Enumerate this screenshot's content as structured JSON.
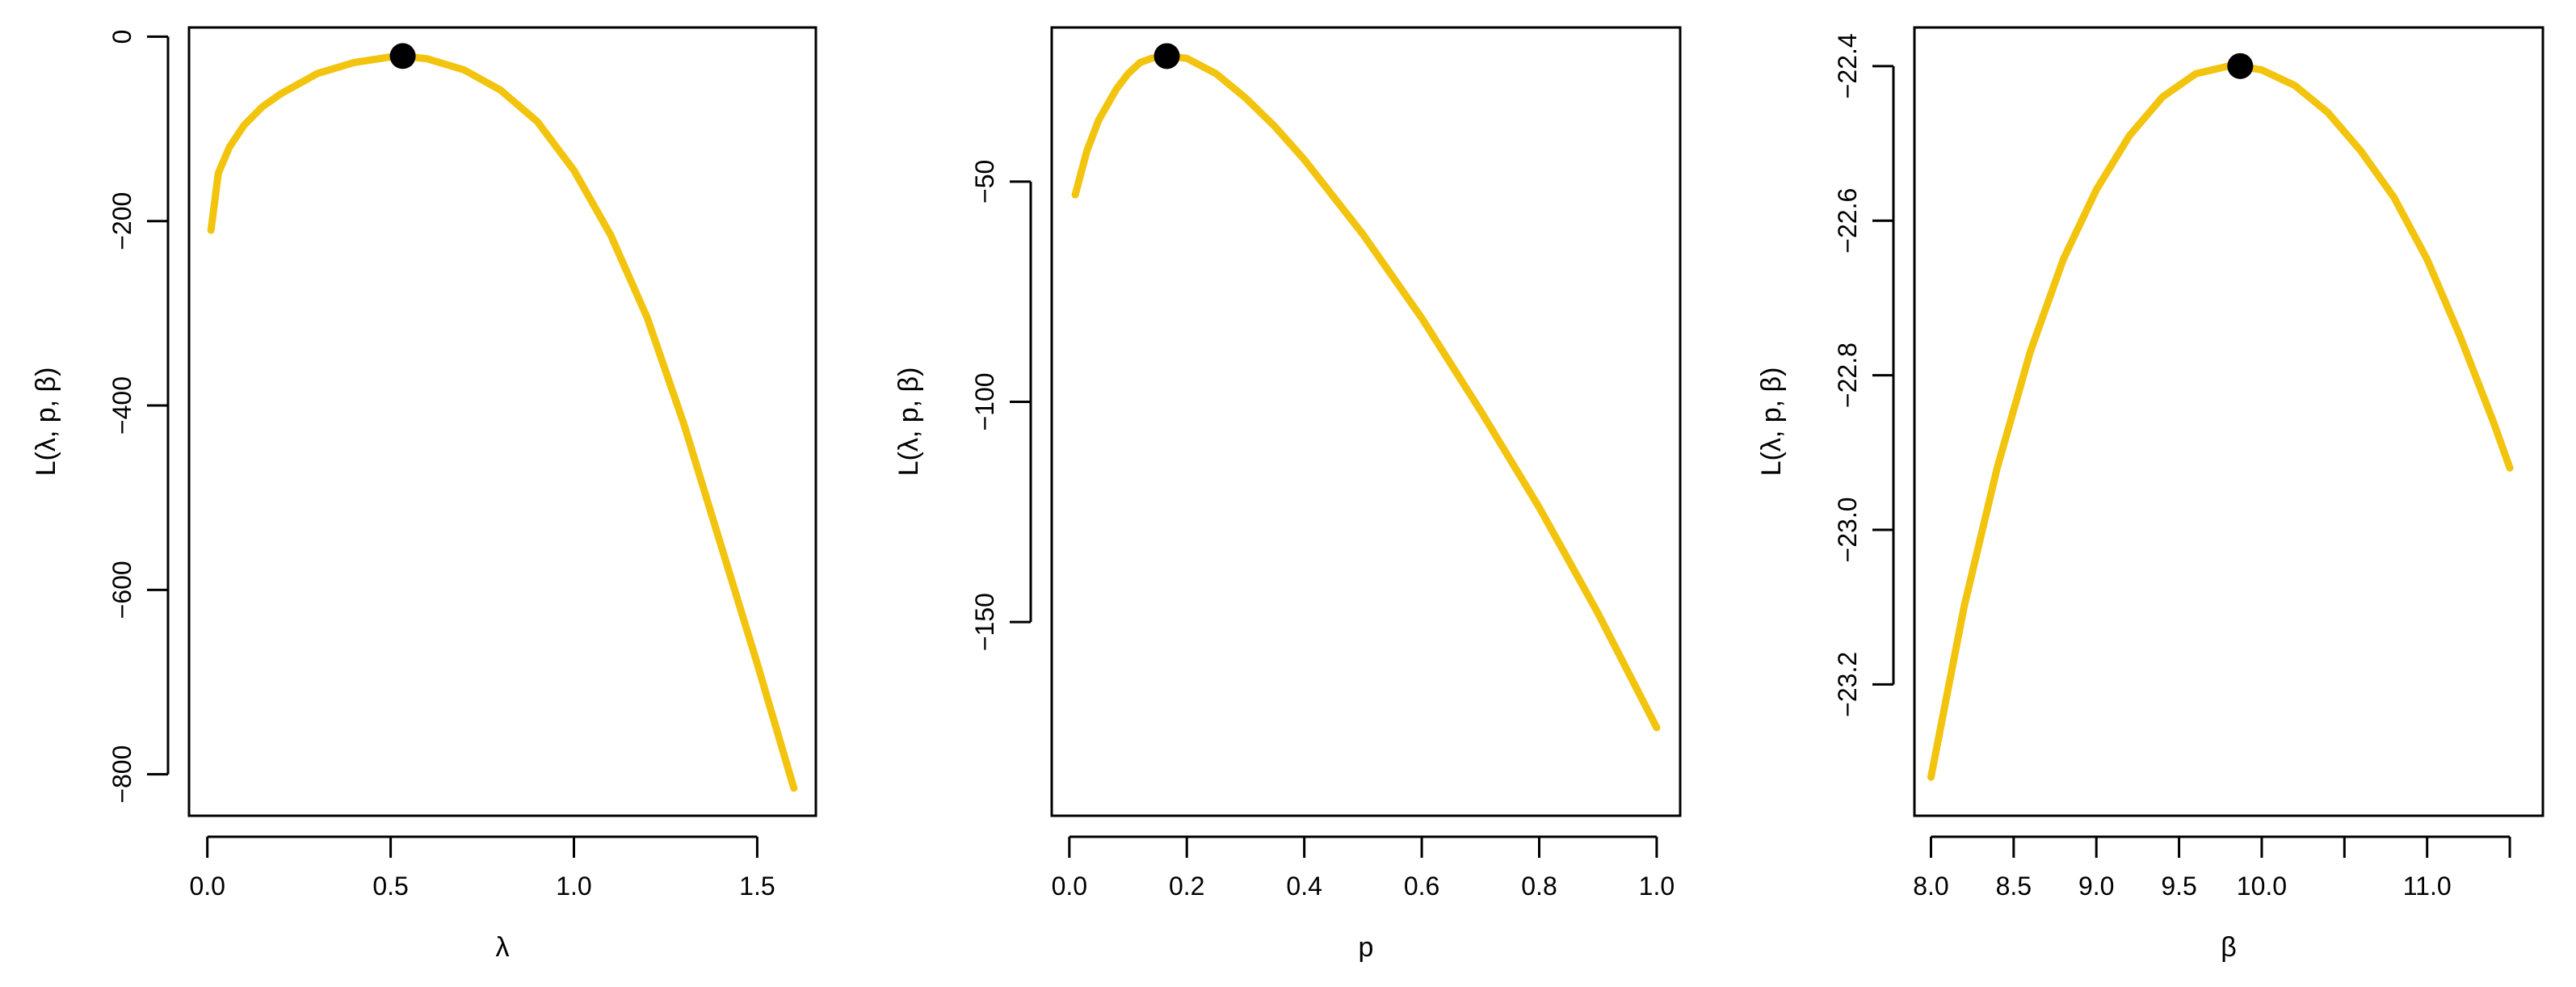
{
  "colors": {
    "curve": "#F2C40E",
    "marker": "#000000",
    "axis": "#000000"
  },
  "chart_data": [
    {
      "type": "line",
      "xlabel": "λ",
      "ylabel": "L(λ, p, β)",
      "xlim": [
        -0.05,
        1.66
      ],
      "ylim": [
        -845,
        10
      ],
      "xticks": [
        0.0,
        0.5,
        1.0,
        1.5
      ],
      "xtick_labels": [
        "0.0",
        "0.5",
        "1.0",
        "1.5"
      ],
      "yticks": [
        0,
        -200,
        -400,
        -600,
        -800
      ],
      "ytick_labels": [
        "0",
        "−200",
        "−400",
        "−600",
        "−800"
      ],
      "series": [
        {
          "x": [
            0.01,
            0.03,
            0.06,
            0.1,
            0.15,
            0.2,
            0.3,
            0.4,
            0.5,
            0.533,
            0.6,
            0.7,
            0.8,
            0.9,
            1.0,
            1.1,
            1.2,
            1.3,
            1.4,
            1.5,
            1.6
          ],
          "y": [
            -210,
            -148,
            -120,
            -96,
            -76,
            -62,
            -40,
            -28,
            -22,
            -21,
            -24,
            -36,
            -58,
            -92,
            -145,
            -215,
            -305,
            -420,
            -550,
            -680,
            -815
          ]
        }
      ],
      "marker": {
        "x": 0.533,
        "y": -21
      }
    },
    {
      "type": "line",
      "xlabel": "p",
      "ylabel": "L(λ, p, β)",
      "xlim": [
        -0.03,
        1.04
      ],
      "ylim": [
        -194,
        -15
      ],
      "xticks": [
        0.0,
        0.2,
        0.4,
        0.6,
        0.8,
        1.0
      ],
      "xtick_labels": [
        "0.0",
        "0.2",
        "0.4",
        "0.6",
        "0.8",
        "1.0"
      ],
      "yticks": [
        -50,
        -100,
        -150
      ],
      "ytick_labels": [
        "−50",
        "−100",
        "−150"
      ],
      "series": [
        {
          "x": [
            0.01,
            0.03,
            0.05,
            0.08,
            0.1,
            0.12,
            0.14,
            0.166,
            0.2,
            0.25,
            0.3,
            0.35,
            0.4,
            0.5,
            0.6,
            0.7,
            0.8,
            0.9,
            1.0
          ],
          "y": [
            -53,
            -43,
            -36,
            -29,
            -25.5,
            -23,
            -22,
            -21.5,
            -22,
            -25.5,
            -31,
            -37.5,
            -45,
            -62,
            -81,
            -102,
            -124,
            -148,
            -174
          ]
        }
      ],
      "marker": {
        "x": 0.166,
        "y": -21.5
      }
    },
    {
      "type": "line",
      "xlabel": "β",
      "ylabel": "L(λ, p, β)",
      "xlim": [
        7.9,
        11.7
      ],
      "ylim": [
        -23.37,
        -22.35
      ],
      "xticks": [
        8.0,
        8.5,
        9.0,
        9.5,
        10.0,
        10.5,
        11.0,
        11.5
      ],
      "xtick_labels": [
        "8.0",
        "8.5",
        "9.0",
        "9.5",
        "10.0",
        "",
        "11.0",
        ""
      ],
      "yticks": [
        -22.4,
        -22.6,
        -22.8,
        -23.0,
        -23.2
      ],
      "ytick_labels": [
        "−22.4",
        "−22.6",
        "−22.8",
        "−23.0",
        "−23.2"
      ],
      "series": [
        {
          "x": [
            8.0,
            8.2,
            8.4,
            8.6,
            8.8,
            9.0,
            9.2,
            9.4,
            9.6,
            9.8,
            9.87,
            10.0,
            10.2,
            10.4,
            10.6,
            10.8,
            11.0,
            11.2,
            11.4,
            11.5
          ],
          "y": [
            -23.32,
            -23.1,
            -22.92,
            -22.77,
            -22.65,
            -22.56,
            -22.49,
            -22.44,
            -22.41,
            -22.4,
            -22.4,
            -22.405,
            -22.425,
            -22.46,
            -22.51,
            -22.57,
            -22.65,
            -22.75,
            -22.86,
            -22.92
          ]
        }
      ],
      "marker": {
        "x": 9.87,
        "y": -22.4
      }
    }
  ]
}
